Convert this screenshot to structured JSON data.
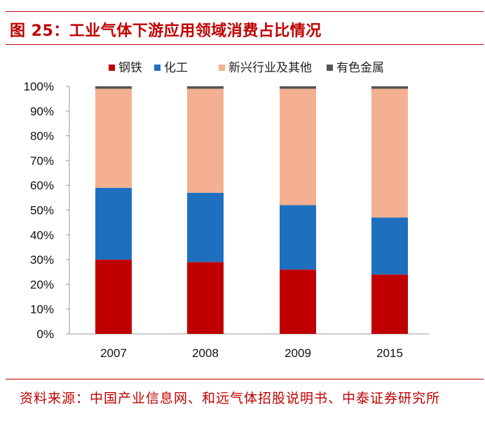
{
  "title": "图 25：工业气体下游应用领域消费占比情况",
  "source": "资料来源：中国产业信息网、和远气体招股说明书、中泰证券研究所",
  "chart_data": {
    "type": "bar",
    "stacked": true,
    "categories": [
      "2007",
      "2008",
      "2009",
      "2015"
    ],
    "series": [
      {
        "name": "钢铁",
        "color": "#c00000",
        "values": [
          30,
          29,
          26,
          24
        ]
      },
      {
        "name": "化工",
        "color": "#1f6fbf",
        "values": [
          29,
          28,
          26,
          23
        ]
      },
      {
        "name": "新兴行业及其他",
        "color": "#f4b090",
        "values": [
          40,
          42,
          47,
          52
        ]
      },
      {
        "name": "有色金属",
        "color": "#555555",
        "values": [
          1,
          1,
          1,
          1
        ]
      }
    ],
    "yticks": [
      "0%",
      "10%",
      "20%",
      "30%",
      "40%",
      "50%",
      "60%",
      "70%",
      "80%",
      "90%",
      "100%"
    ],
    "ylim": [
      0,
      100
    ],
    "legend_position": "top",
    "grid": false
  }
}
